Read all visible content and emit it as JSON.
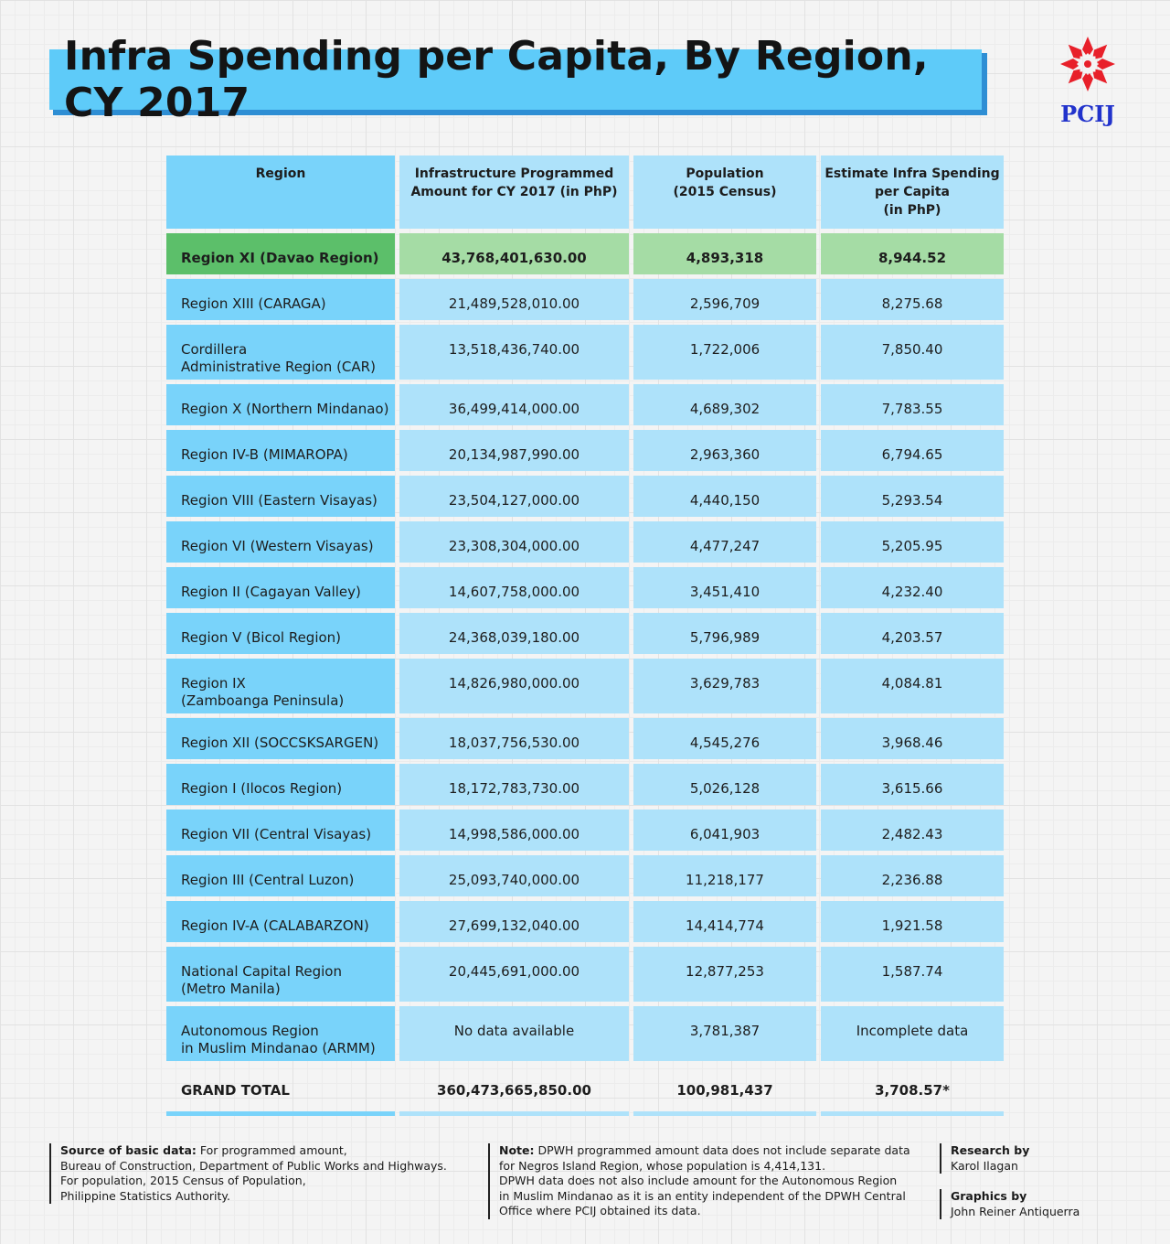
{
  "title": "Infra Spending per Capita, By Region, CY 2017",
  "logo": {
    "text": "PCIJ",
    "icon": "pcij-pen-nib-logo-icon",
    "color": "#e8202a"
  },
  "columns": {
    "region": "Region",
    "amount_l1": "Infrastructure Programmed",
    "amount_l2": "Amount for CY 2017 (in PhP)",
    "pop_l1": "Population",
    "pop_l2": "(2015 Census)",
    "per_l1": "Estimate Infra Spending",
    "per_l2": "per Capita",
    "per_l3": "(in PhP)"
  },
  "rows": [
    {
      "r1": "Region XI (Davao Region)",
      "r2": "",
      "amount": "43,768,401,630.00",
      "pop": "4,893,318",
      "per": "8,944.52"
    },
    {
      "r1": "Region XIII (CARAGA)",
      "r2": "",
      "amount": "21,489,528,010.00",
      "pop": "2,596,709",
      "per": "8,275.68"
    },
    {
      "r1": "Cordillera",
      "r2": "Administrative Region (CAR)",
      "amount": "13,518,436,740.00",
      "pop": "1,722,006",
      "per": "7,850.40"
    },
    {
      "r1": "Region X (Northern Mindanao)",
      "r2": "",
      "amount": "36,499,414,000.00",
      "pop": "4,689,302",
      "per": "7,783.55"
    },
    {
      "r1": "Region IV-B (MIMAROPA)",
      "r2": "",
      "amount": "20,134,987,990.00",
      "pop": "2,963,360",
      "per": "6,794.65"
    },
    {
      "r1": "Region VIII (Eastern Visayas)",
      "r2": "",
      "amount": "23,504,127,000.00",
      "pop": "4,440,150",
      "per": "5,293.54"
    },
    {
      "r1": "Region VI (Western Visayas)",
      "r2": "",
      "amount": "23,308,304,000.00",
      "pop": "4,477,247",
      "per": "5,205.95"
    },
    {
      "r1": "Region II (Cagayan Valley)",
      "r2": "",
      "amount": "14,607,758,000.00",
      "pop": "3,451,410",
      "per": "4,232.40"
    },
    {
      "r1": "Region V (Bicol Region)",
      "r2": "",
      "amount": "24,368,039,180.00",
      "pop": "5,796,989",
      "per": "4,203.57"
    },
    {
      "r1": "Region IX",
      "r2": "(Zamboanga Peninsula)",
      "amount": "14,826,980,000.00",
      "pop": "3,629,783",
      "per": "4,084.81"
    },
    {
      "r1": "Region XII (SOCCSKSARGEN)",
      "r2": "",
      "amount": "18,037,756,530.00",
      "pop": "4,545,276",
      "per": "3,968.46"
    },
    {
      "r1": "Region I (Ilocos Region)",
      "r2": "",
      "amount": "18,172,783,730.00",
      "pop": "5,026,128",
      "per": "3,615.66"
    },
    {
      "r1": "Region VII (Central Visayas)",
      "r2": "",
      "amount": "14,998,586,000.00",
      "pop": "6,041,903",
      "per": "2,482.43"
    },
    {
      "r1": "Region III (Central Luzon)",
      "r2": "",
      "amount": "25,093,740,000.00",
      "pop": "11,218,177",
      "per": "2,236.88"
    },
    {
      "r1": "Region IV-A (CALABARZON)",
      "r2": "",
      "amount": "27,699,132,040.00",
      "pop": "14,414,774",
      "per": "1,921.58"
    },
    {
      "r1": "National Capital Region",
      "r2": "(Metro Manila)",
      "amount": "20,445,691,000.00",
      "pop": "12,877,253",
      "per": "1,587.74"
    },
    {
      "r1": "Autonomous Region",
      "r2": "in Muslim Mindanao (ARMM)",
      "amount": "No data available",
      "pop": "3,781,387",
      "per": "Incomplete data"
    }
  ],
  "total": {
    "label": "GRAND TOTAL",
    "amount": "360,473,665,850.00",
    "pop": "100,981,437",
    "per": "3,708.57*"
  },
  "footer": {
    "source_label": "Source of basic data:",
    "source_l1": " For programmed amount,",
    "source_l2": "Bureau of Construction, Department of Public Works and Highways.",
    "source_l3": "For population, 2015 Census of Population,",
    "source_l4": "Philippine Statistics Authority.",
    "note_label": "Note:",
    "note_l1": " DPWH programmed amount data does not include separate data",
    "note_l2": "for Negros Island Region, whose population is 4,414,131.",
    "note_l3": "DPWH data does not also include amount for the Autonomous Region",
    "note_l4": "in Muslim Mindanao as it is an entity independent of the DPWH Central",
    "note_l5": "Office where PCIJ obtained its data.",
    "research_label": "Research by",
    "research_name": "Karol Ilagan",
    "graphics_label": "Graphics by",
    "graphics_name": "John Reiner Antiquerra"
  }
}
